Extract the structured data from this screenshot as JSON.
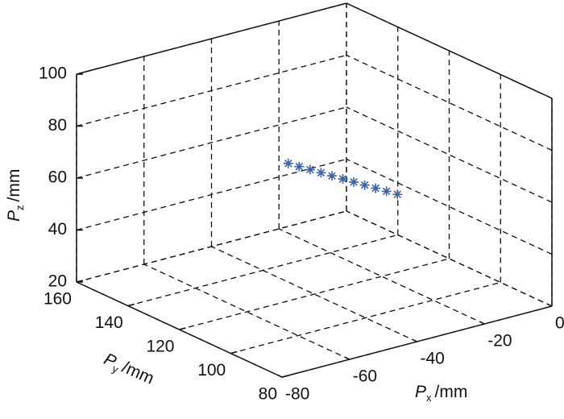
{
  "chart_data": {
    "type": "scatter3d",
    "x": [
      -34,
      -33.2,
      -32.4,
      -31.6,
      -30.8,
      -30,
      -29.2,
      -28.4,
      -27.6,
      -26.8,
      -26
    ],
    "y": [
      138,
      134.8,
      131.6,
      128.4,
      125.2,
      122,
      118.8,
      115.6,
      112.4,
      109.2,
      106
    ],
    "z": [
      60,
      60,
      60,
      60,
      60,
      60,
      60,
      60,
      60,
      60,
      60
    ],
    "color": "#3a62a8",
    "marker": "*",
    "xlabel": {
      "symbol": "P",
      "subscript": "x",
      "unit": "/mm"
    },
    "ylabel": {
      "symbol": "P",
      "subscript": "y",
      "unit": "/mm"
    },
    "zlabel": {
      "symbol": "P",
      "subscript": "z",
      "unit": "/mm"
    },
    "xlim": [
      -80,
      0
    ],
    "xticks": [
      -80,
      -60,
      -40,
      -20,
      0
    ],
    "ylim": [
      80,
      160
    ],
    "yticks": [
      80,
      100,
      120,
      140,
      160
    ],
    "zlim": [
      20,
      100
    ],
    "zticks": [
      20,
      40,
      60,
      80,
      100
    ],
    "grid": true
  }
}
